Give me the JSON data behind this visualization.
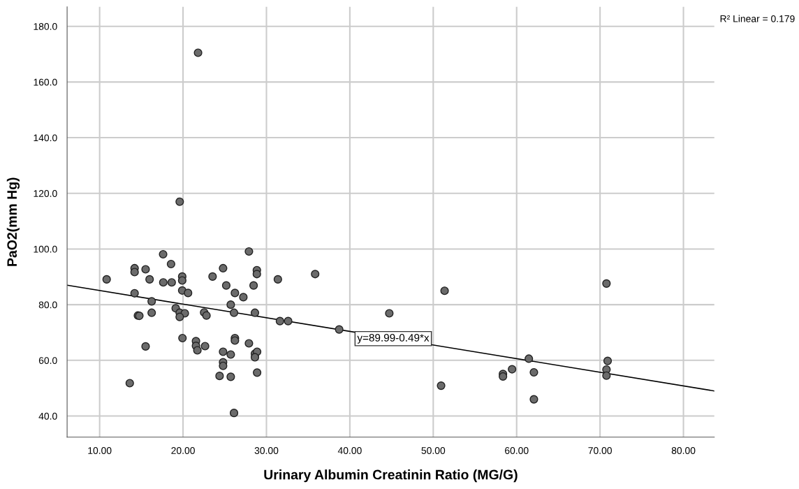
{
  "chart_data": {
    "type": "scatter",
    "xlabel": "Urinary Albumin Creatinin Ratio (MG/G)",
    "ylabel": "PaO2(mm Hg)",
    "xlim": [
      6.1,
      83.7
    ],
    "ylim": [
      32.4,
      187
    ],
    "xticks": [
      {
        "value": 10,
        "label": "10.00"
      },
      {
        "value": 20,
        "label": "20.00"
      },
      {
        "value": 30,
        "label": "30.00"
      },
      {
        "value": 40,
        "label": "40.00"
      },
      {
        "value": 50,
        "label": "50.00"
      },
      {
        "value": 60,
        "label": "60.00"
      },
      {
        "value": 70,
        "label": "70.00"
      },
      {
        "value": 80,
        "label": "80.00"
      }
    ],
    "yticks": [
      {
        "value": 40,
        "label": "40.0"
      },
      {
        "value": 60,
        "label": "60.0"
      },
      {
        "value": 80,
        "label": "80.0"
      },
      {
        "value": 100,
        "label": "100.0"
      },
      {
        "value": 120,
        "label": "120.0"
      },
      {
        "value": 140,
        "label": "140.0"
      },
      {
        "value": 160,
        "label": "160.0"
      },
      {
        "value": 180,
        "label": "180.0"
      }
    ],
    "grid": true,
    "marker": "circle",
    "series": [
      {
        "color": "#6b6b6b",
        "x": [
          10.84,
          14.19,
          14.19,
          15.51,
          17.61,
          18.56,
          15.99,
          17.63,
          18.64,
          19.9,
          19.9,
          19.9,
          20.6,
          14.19,
          16.24,
          19.12,
          19.6,
          20.21,
          19.6,
          14.59,
          14.76,
          16.24,
          22.53,
          22.81,
          23.54,
          24.8,
          25.18,
          26.22,
          27.23,
          25.72,
          26.11,
          27.9,
          28.85,
          28.85,
          28.46,
          28.62,
          19.93,
          21.55,
          21.55,
          21.72,
          22.64,
          15.51,
          24.8,
          25.72,
          26.22,
          26.22,
          27.9,
          28.62,
          28.88,
          28.62,
          24.8,
          24.8,
          24.38,
          25.72,
          28.88,
          13.61,
          26.11,
          19.6,
          21.8,
          31.37,
          35.84,
          31.62,
          32.6,
          38.72,
          44.73,
          51.36,
          50.94,
          70.77,
          58.36,
          58.36,
          59.45,
          61.46,
          62.07,
          62.07,
          70.91,
          70.77,
          70.77
        ],
        "values": [
          89.1,
          93.1,
          91.7,
          92.7,
          98.1,
          94.6,
          89.1,
          88.0,
          88.0,
          90.1,
          88.7,
          85.1,
          84.2,
          84.1,
          81.2,
          78.7,
          77.1,
          76.9,
          75.6,
          76.1,
          76.0,
          77.1,
          77.2,
          76.1,
          90.1,
          93.1,
          86.9,
          84.2,
          82.7,
          80.0,
          77.1,
          99.1,
          92.4,
          91.0,
          86.9,
          77.1,
          68.0,
          66.9,
          65.2,
          63.6,
          65.1,
          65.0,
          63.1,
          62.1,
          68.0,
          67.1,
          66.1,
          62.4,
          63.1,
          61.1,
          59.3,
          58.0,
          54.4,
          54.1,
          55.6,
          51.8,
          41.1,
          117.0,
          170.5,
          89.1,
          91.0,
          74.1,
          74.1,
          71.1,
          76.9,
          85.0,
          50.9,
          87.6,
          55.1,
          54.2,
          56.8,
          60.6,
          55.7,
          46.0,
          59.8,
          56.7,
          54.5
        ]
      },
      {
        "type": "line",
        "color": "#000000",
        "marker": "none",
        "x": [
          6.1,
          83.7
        ],
        "values": [
          87.0,
          49.0
        ]
      }
    ],
    "annotations": [
      {
        "text": "y=89.99-0.49*x",
        "x": 45.2,
        "y": 67.8
      },
      "R² Linear = 0.179"
    ]
  }
}
